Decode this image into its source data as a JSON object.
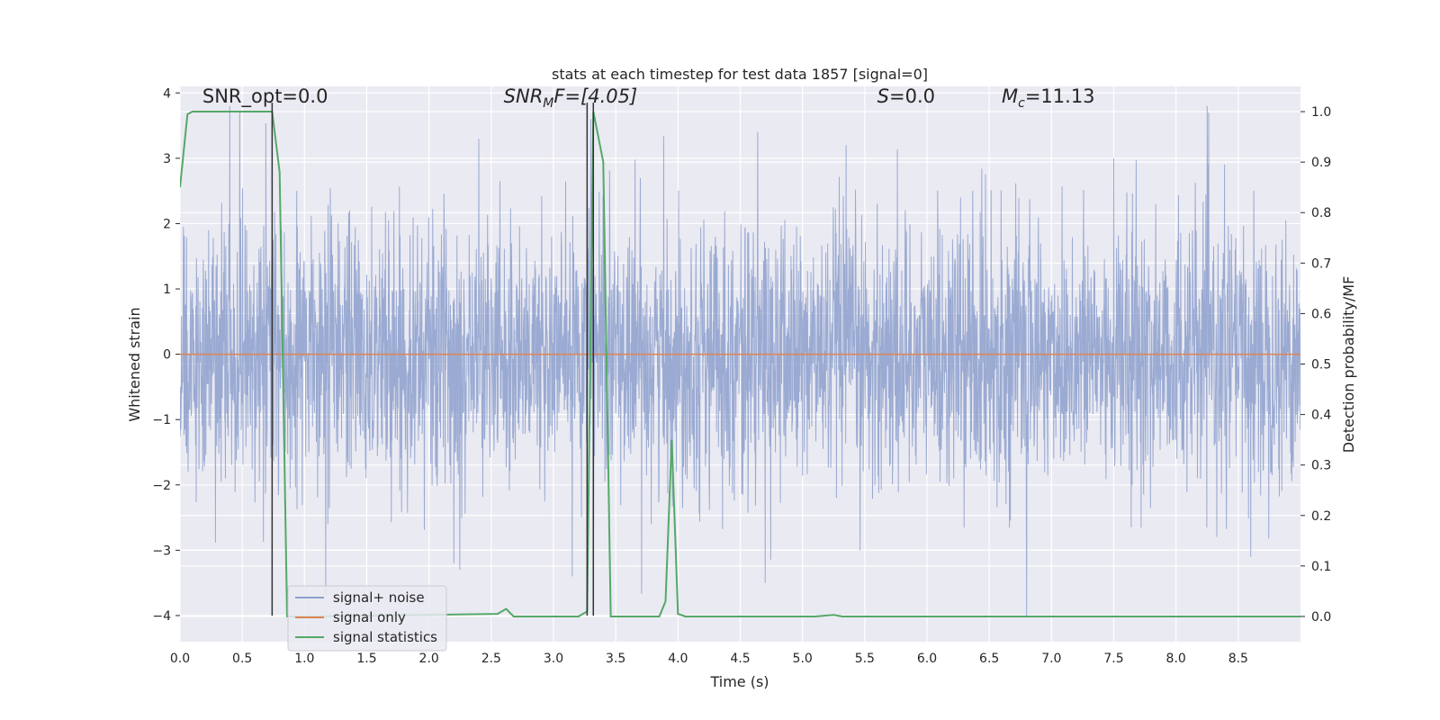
{
  "chart_data": {
    "type": "line",
    "title": "stats at each timestep for test data 1857 [signal=0]",
    "xlabel": "Time (s)",
    "ylabel_left": "Whitened strain",
    "ylabel_right": "Detection probability/MF",
    "xlim": [
      0.0,
      9.0
    ],
    "ylim_left": [
      -4.4,
      4.1
    ],
    "ylim_right": [
      -0.05,
      1.05
    ],
    "xticks": [
      "0.0",
      "0.5",
      "1.0",
      "1.5",
      "2.0",
      "2.5",
      "3.0",
      "3.5",
      "4.0",
      "4.5",
      "5.0",
      "5.5",
      "6.0",
      "6.5",
      "7.0",
      "7.5",
      "8.0",
      "8.5"
    ],
    "xtick_values": [
      0.0,
      0.5,
      1.0,
      1.5,
      2.0,
      2.5,
      3.0,
      3.5,
      4.0,
      4.5,
      5.0,
      5.5,
      6.0,
      6.5,
      7.0,
      7.5,
      8.0,
      8.5
    ],
    "yticks_left": [
      "4",
      "3",
      "2",
      "1",
      "0",
      "−1",
      "−2",
      "−3",
      "−4"
    ],
    "ytick_values_left": [
      4,
      3,
      2,
      1,
      0,
      -1,
      -2,
      -3,
      -4
    ],
    "yticks_right": [
      "1.0",
      "0.9",
      "0.8",
      "0.7",
      "0.6",
      "0.5",
      "0.4",
      "0.3",
      "0.2",
      "0.1",
      "0.0"
    ],
    "ytick_values_right": [
      1.0,
      0.9,
      0.8,
      0.7,
      0.6,
      0.5,
      0.4,
      0.3,
      0.2,
      0.1,
      0.0
    ],
    "grid": true,
    "legend_position": "lower-left",
    "annotations": [
      {
        "prefix": "SNR_opt=0.0",
        "italic": "",
        "sub": "",
        "suffix": "",
        "x": 0.18,
        "y": 3.85
      },
      {
        "prefix": "",
        "italic": "SNR",
        "sub": "M",
        "suffix": "F=[4.05]",
        "x": 2.6,
        "y": 3.85
      },
      {
        "prefix": "",
        "italic": "S",
        "sub": "",
        "suffix": "=0.0",
        "x": 5.6,
        "y": 3.85
      },
      {
        "prefix": "",
        "italic": "M",
        "sub": "c",
        "suffix": "=11.13",
        "x": 6.6,
        "y": 3.85
      }
    ],
    "vlines": [
      {
        "x": 0.74,
        "y0": -4.0,
        "y1": 3.85
      },
      {
        "x": 3.27,
        "y0": -4.0,
        "y1": 3.85
      },
      {
        "x": 3.32,
        "y0": -4.0,
        "y1": 3.85
      }
    ],
    "series": [
      {
        "name": "signal+ noise",
        "axis": "left",
        "color": "#8c9fcc",
        "kind": "noise",
        "sigma": 1.0,
        "peaks_up": [
          [
            0.4,
            3.8
          ],
          [
            0.48,
            3.7
          ],
          [
            2.4,
            3.3
          ],
          [
            3.3,
            3.6
          ],
          [
            5.35,
            3.2
          ],
          [
            7.5,
            3.0
          ],
          [
            8.25,
            3.8
          ]
        ],
        "peaks_down": [
          [
            6.8,
            -4.0
          ],
          [
            4.7,
            -3.5
          ],
          [
            3.15,
            -3.4
          ],
          [
            2.2,
            -3.2
          ],
          [
            8.6,
            -3.1
          ]
        ],
        "values": []
      },
      {
        "name": "signal only",
        "axis": "left",
        "color": "#dd8452",
        "x": [
          0.0,
          9.0
        ],
        "values": [
          0.0,
          0.0
        ]
      },
      {
        "name": "signal statistics",
        "axis": "right",
        "color": "#55a868",
        "x": [
          0.0,
          0.06,
          0.1,
          0.3,
          0.5,
          0.6,
          0.74,
          0.8,
          0.86,
          0.9,
          1.0,
          2.55,
          2.62,
          2.68,
          3.2,
          3.27,
          3.32,
          3.4,
          3.46,
          3.5,
          3.85,
          3.9,
          3.95,
          4.0,
          4.06,
          5.1,
          5.25,
          5.32,
          9.0
        ],
        "values": [
          0.85,
          0.995,
          1.0,
          1.0,
          1.0,
          1.0,
          1.0,
          0.88,
          0.0,
          0.0,
          0.0,
          0.005,
          0.015,
          0.0,
          0.0,
          0.01,
          1.0,
          0.9,
          0.0,
          0.0,
          0.0,
          0.03,
          0.35,
          0.005,
          0.0,
          0.0,
          0.003,
          0.0,
          0.0
        ]
      }
    ]
  }
}
